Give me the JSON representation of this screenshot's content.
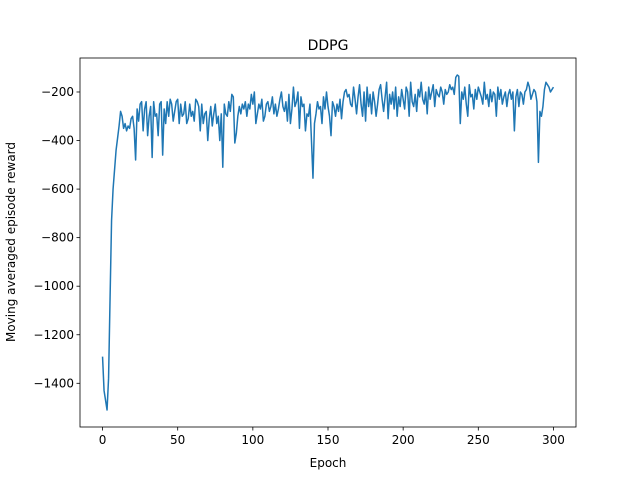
{
  "chart_data": {
    "type": "line",
    "title": "DDPG",
    "x_label": "Epoch",
    "y_label": "Moving averaged episode reward",
    "color": "#1f77b4",
    "xlim": [
      -15,
      315
    ],
    "ylim": [
      -1580,
      -60
    ],
    "xticks": [
      0,
      50,
      100,
      150,
      200,
      250,
      300
    ],
    "yticks": [
      {
        "value": -1400,
        "label": "−1400"
      },
      {
        "value": -1200,
        "label": "−1200"
      },
      {
        "value": -1000,
        "label": "−1000"
      },
      {
        "value": -800,
        "label": "−800"
      },
      {
        "value": -600,
        "label": "−600"
      },
      {
        "value": -400,
        "label": "−400"
      },
      {
        "value": -200,
        "label": "−200"
      }
    ],
    "x": [
      0,
      1,
      2,
      3,
      4,
      5,
      6,
      7,
      8,
      9,
      10,
      11,
      12,
      13,
      14,
      15,
      16,
      17,
      18,
      19,
      20,
      21,
      22,
      23,
      24,
      25,
      26,
      27,
      28,
      29,
      30,
      31,
      32,
      33,
      34,
      35,
      36,
      37,
      38,
      39,
      40,
      41,
      42,
      43,
      44,
      45,
      46,
      47,
      48,
      49,
      50,
      51,
      52,
      53,
      54,
      55,
      56,
      57,
      58,
      59,
      60,
      61,
      62,
      63,
      64,
      65,
      66,
      67,
      68,
      69,
      70,
      71,
      72,
      73,
      74,
      75,
      76,
      77,
      78,
      79,
      80,
      81,
      82,
      83,
      84,
      85,
      86,
      87,
      88,
      89,
      90,
      91,
      92,
      93,
      94,
      95,
      96,
      97,
      98,
      99,
      100,
      101,
      102,
      103,
      104,
      105,
      106,
      107,
      108,
      109,
      110,
      111,
      112,
      113,
      114,
      115,
      116,
      117,
      118,
      119,
      120,
      121,
      122,
      123,
      124,
      125,
      126,
      127,
      128,
      129,
      130,
      131,
      132,
      133,
      134,
      135,
      136,
      137,
      138,
      139,
      140,
      141,
      142,
      143,
      144,
      145,
      146,
      147,
      148,
      149,
      150,
      151,
      152,
      153,
      154,
      155,
      156,
      157,
      158,
      159,
      160,
      161,
      162,
      163,
      164,
      165,
      166,
      167,
      168,
      169,
      170,
      171,
      172,
      173,
      174,
      175,
      176,
      177,
      178,
      179,
      180,
      181,
      182,
      183,
      184,
      185,
      186,
      187,
      188,
      189,
      190,
      191,
      192,
      193,
      194,
      195,
      196,
      197,
      198,
      199,
      200,
      201,
      202,
      203,
      204,
      205,
      206,
      207,
      208,
      209,
      210,
      211,
      212,
      213,
      214,
      215,
      216,
      217,
      218,
      219,
      220,
      221,
      222,
      223,
      224,
      225,
      226,
      227,
      228,
      229,
      230,
      231,
      232,
      233,
      234,
      235,
      236,
      237,
      238,
      239,
      240,
      241,
      242,
      243,
      244,
      245,
      246,
      247,
      248,
      249,
      250,
      251,
      252,
      253,
      254,
      255,
      256,
      257,
      258,
      259,
      260,
      261,
      262,
      263,
      264,
      265,
      266,
      267,
      268,
      269,
      270,
      271,
      272,
      273,
      274,
      275,
      276,
      277,
      278,
      279,
      280,
      281,
      282,
      283,
      284,
      285,
      286,
      287,
      288,
      289,
      290,
      291,
      292,
      293,
      294,
      295,
      296,
      297,
      298,
      299,
      300
    ],
    "values": [
      -1290,
      -1430,
      -1470,
      -1510,
      -1380,
      -1050,
      -730,
      -600,
      -520,
      -440,
      -390,
      -340,
      -280,
      -300,
      -350,
      -330,
      -360,
      -340,
      -350,
      -310,
      -300,
      -350,
      -480,
      -270,
      -320,
      -250,
      -240,
      -360,
      -270,
      -240,
      -380,
      -300,
      -260,
      -470,
      -240,
      -300,
      -290,
      -380,
      -250,
      -240,
      -460,
      -270,
      -330,
      -240,
      -300,
      -230,
      -250,
      -320,
      -280,
      -240,
      -230,
      -330,
      -250,
      -300,
      -290,
      -240,
      -330,
      -310,
      -250,
      -300,
      -280,
      -320,
      -230,
      -240,
      -260,
      -360,
      -250,
      -330,
      -290,
      -280,
      -400,
      -310,
      -260,
      -340,
      -290,
      -250,
      -330,
      -300,
      -400,
      -290,
      -510,
      -250,
      -290,
      -300,
      -240,
      -280,
      -210,
      -220,
      -410,
      -370,
      -300,
      -260,
      -290,
      -250,
      -270,
      -240,
      -300,
      -250,
      -270,
      -210,
      -250,
      -200,
      -330,
      -290,
      -250,
      -270,
      -230,
      -320,
      -300,
      -250,
      -240,
      -280,
      -260,
      -220,
      -290,
      -250,
      -300,
      -270,
      -230,
      -200,
      -260,
      -280,
      -240,
      -320,
      -210,
      -330,
      -270,
      -180,
      -260,
      -240,
      -200,
      -350,
      -220,
      -260,
      -250,
      -360,
      -290,
      -300,
      -250,
      -400,
      -555,
      -330,
      -290,
      -240,
      -270,
      -260,
      -330,
      -220,
      -270,
      -200,
      -260,
      -300,
      -380,
      -240,
      -260,
      -300,
      -250,
      -280,
      -230,
      -310,
      -240,
      -200,
      -190,
      -220,
      -210,
      -250,
      -260,
      -180,
      -230,
      -290,
      -220,
      -170,
      -250,
      -300,
      -200,
      -320,
      -180,
      -260,
      -210,
      -290,
      -200,
      -240,
      -300,
      -250,
      -190,
      -170,
      -230,
      -280,
      -220,
      -160,
      -310,
      -210,
      -250,
      -200,
      -270,
      -180,
      -300,
      -220,
      -260,
      -190,
      -230,
      -270,
      -180,
      -200,
      -300,
      -160,
      -240,
      -260,
      -210,
      -280,
      -190,
      -220,
      -160,
      -230,
      -250,
      -200,
      -290,
      -180,
      -230,
      -200,
      -170,
      -260,
      -190,
      -210,
      -220,
      -180,
      -200,
      -250,
      -190,
      -210,
      -200,
      -170,
      -190,
      -180,
      -210,
      -140,
      -130,
      -135,
      -330,
      -200,
      -230,
      -180,
      -250,
      -300,
      -170,
      -220,
      -210,
      -270,
      -190,
      -230,
      -180,
      -200,
      -220,
      -250,
      -160,
      -230,
      -210,
      -260,
      -190,
      -240,
      -200,
      -210,
      -300,
      -180,
      -230,
      -190,
      -250,
      -220,
      -200,
      -260,
      -210,
      -190,
      -230,
      -200,
      -360,
      -220,
      -190,
      -260,
      -200,
      -210,
      -250,
      -200,
      -190,
      -160,
      -180,
      -230,
      -210,
      -190,
      -200,
      -240,
      -490,
      -280,
      -300,
      -260,
      -190,
      -160,
      -170,
      -180,
      -200,
      -190,
      -180
    ]
  }
}
